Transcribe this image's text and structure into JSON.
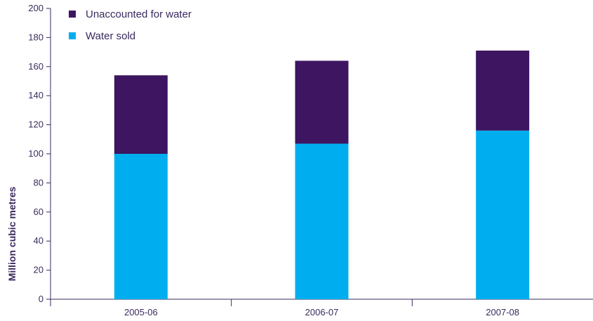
{
  "chart_data": {
    "type": "bar",
    "stacked": true,
    "categories": [
      "2005-06",
      "2006-07",
      "2007-08"
    ],
    "series": [
      {
        "name": "Water sold",
        "values": [
          100,
          107,
          116
        ],
        "color": "#00aeef"
      },
      {
        "name": "Unaccounted for water",
        "values": [
          54,
          57,
          55
        ],
        "color": "#3d1560"
      }
    ],
    "ylabel": "Million cubic metres",
    "xlabel": "",
    "ylim": [
      0,
      200
    ],
    "yticks": [
      "0",
      "20",
      "40",
      "60",
      "80",
      "100",
      "120",
      "140",
      "160",
      "180",
      "200"
    ],
    "legend": [
      {
        "label": "Unaccounted for water",
        "color": "#3d1560"
      },
      {
        "label": "Water sold",
        "color": "#00aeef"
      }
    ],
    "legend_position": "top-left",
    "grid": false
  }
}
